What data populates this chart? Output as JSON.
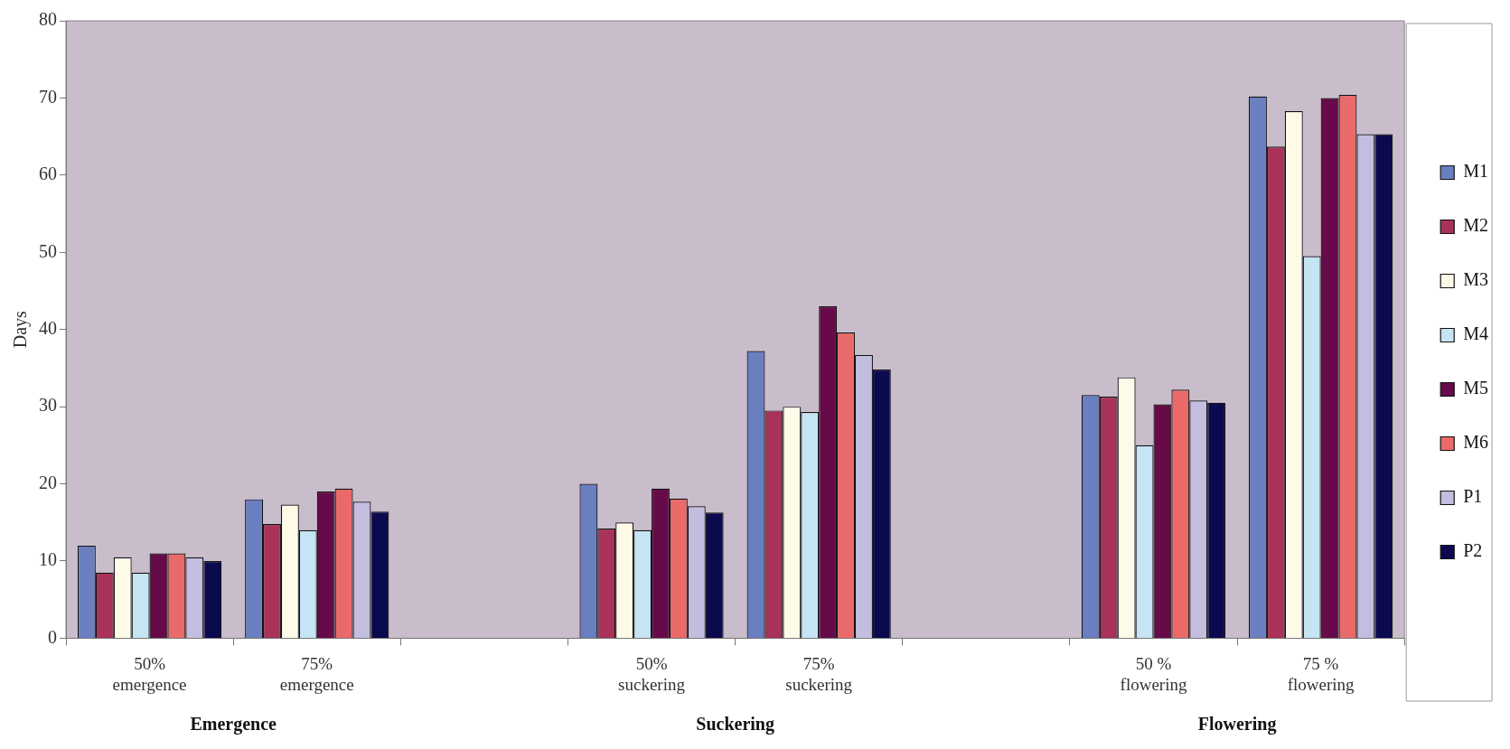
{
  "chart_data": {
    "type": "bar",
    "ylabel": "Days",
    "categories": [
      "50% emergence",
      "75% emergence",
      null,
      "50% suckering",
      "75% suckering",
      null,
      "50 % flowering",
      "75 % flowering"
    ],
    "series": [
      {
        "name": "M1",
        "color": "#6a7fbf",
        "values": [
          12,
          18,
          null,
          20,
          37.2,
          null,
          31.5,
          70.2
        ]
      },
      {
        "name": "M2",
        "color": "#a83258",
        "values": [
          8.5,
          14.8,
          null,
          14.2,
          29.5,
          null,
          31.3,
          63.7
        ]
      },
      {
        "name": "M3",
        "color": "#fdfbe8",
        "values": [
          10.5,
          17.3,
          null,
          15,
          30,
          null,
          33.8,
          68.3
        ]
      },
      {
        "name": "M4",
        "color": "#c5e4f4",
        "values": [
          8.5,
          14,
          null,
          14,
          29.3,
          null,
          25,
          49.5
        ]
      },
      {
        "name": "M5",
        "color": "#660a4a",
        "values": [
          11,
          19,
          null,
          19.4,
          43,
          null,
          30.3,
          70
        ]
      },
      {
        "name": "M6",
        "color": "#ea6a6a",
        "values": [
          11,
          19.4,
          null,
          18.1,
          39.6,
          null,
          32.2,
          70.4
        ]
      },
      {
        "name": "P1",
        "color": "#c3bde0",
        "values": [
          10.5,
          17.7,
          null,
          17.1,
          36.7,
          null,
          30.8,
          65.3
        ]
      },
      {
        "name": "P2",
        "color": "#0c0a4e",
        "values": [
          10,
          16.4,
          null,
          16.3,
          34.8,
          null,
          30.5,
          65.3
        ]
      }
    ],
    "ylim": [
      0,
      80
    ],
    "yticks": [
      0,
      10,
      20,
      30,
      40,
      50,
      60,
      70,
      80
    ],
    "annotations": [
      "Emergence",
      "Suckering",
      "Flowering"
    ],
    "grid": false,
    "legend": "right"
  }
}
